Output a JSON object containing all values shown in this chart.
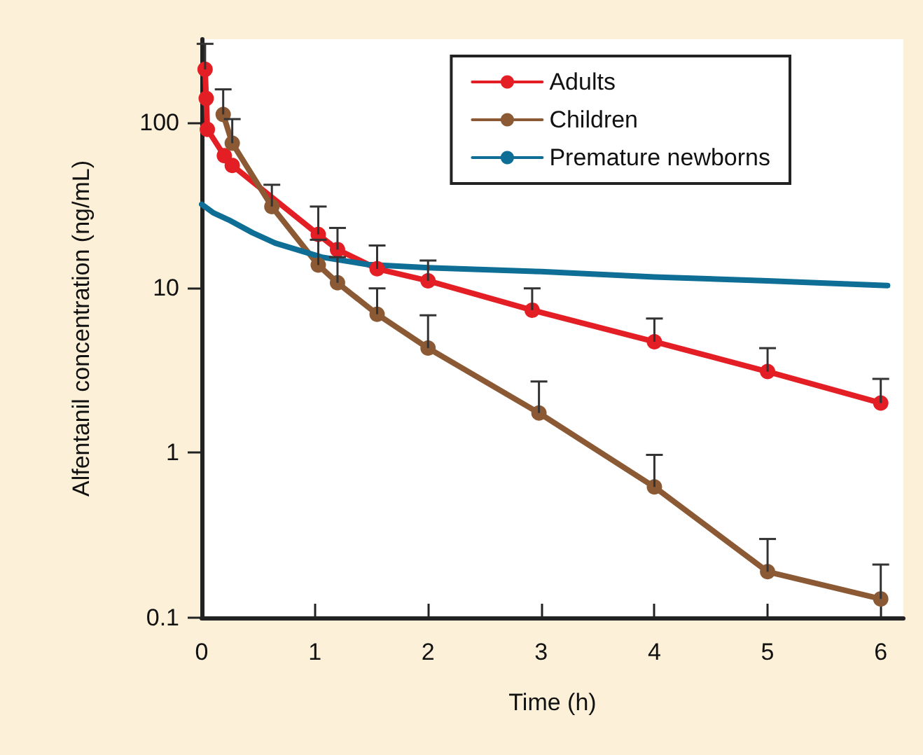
{
  "chart_data": {
    "type": "line",
    "xlabel": "Time (h)",
    "ylabel": "Alfentanil concentration (ng/mL)",
    "xlim": [
      0,
      6.2
    ],
    "xticks": [
      0,
      1,
      2,
      3,
      4,
      5,
      6
    ],
    "ylim": [
      0.1,
      320
    ],
    "yticks": [
      0.1,
      1,
      10,
      100
    ],
    "log": "y",
    "grid": false,
    "legend": "top right",
    "series": [
      {
        "name": "Adults",
        "color": "#e31e24",
        "marker": "circle",
        "x": [
          0.03,
          0.04,
          0.05,
          0.2,
          0.27,
          1.03,
          1.2,
          1.55,
          2,
          2.92,
          4,
          5,
          6
        ],
        "values": [
          210,
          140,
          91,
          63,
          55,
          21,
          17,
          13,
          11,
          7.3,
          4.7,
          3.1,
          2.0
        ],
        "errors": [
          [
            210,
            300
          ],
          null,
          null,
          null,
          null,
          [
            21,
            31
          ],
          [
            17,
            23
          ],
          [
            13,
            18
          ],
          [
            11,
            14.6
          ],
          [
            7.3,
            9.9
          ],
          [
            4.7,
            6.5
          ],
          [
            3.1,
            4.3
          ],
          [
            2.0,
            2.8
          ]
        ]
      },
      {
        "name": "Children",
        "color": "#8b5a35",
        "marker": "circle",
        "x": [
          0.19,
          0.27,
          0.62,
          1.03,
          1.2,
          1.55,
          2,
          2.98,
          4,
          5,
          6
        ],
        "values": [
          112,
          75,
          31,
          13.7,
          10.7,
          6.9,
          4.3,
          1.74,
          0.62,
          0.19,
          0.13
        ],
        "errors": [
          [
            112,
            159
          ],
          [
            75,
            105
          ],
          [
            31,
            42
          ],
          [
            13.7,
            19.5
          ],
          [
            10.7,
            15.3
          ],
          [
            6.9,
            9.9
          ],
          [
            4.3,
            6.8
          ],
          [
            1.74,
            2.7
          ],
          [
            0.62,
            0.97
          ],
          [
            0.19,
            0.3
          ],
          [
            0.13,
            0.21
          ]
        ]
      },
      {
        "name": "Premature newborns",
        "color": "#0e6e96",
        "marker": "none",
        "x": [
          0,
          0.1,
          0.24,
          0.45,
          0.65,
          1.06,
          1.47,
          2,
          3,
          4,
          5,
          6.06
        ],
        "values": [
          32,
          28.5,
          25.7,
          21.5,
          18.6,
          15.3,
          13.8,
          13.2,
          12.5,
          11.6,
          11.0,
          10.3
        ]
      }
    ]
  }
}
